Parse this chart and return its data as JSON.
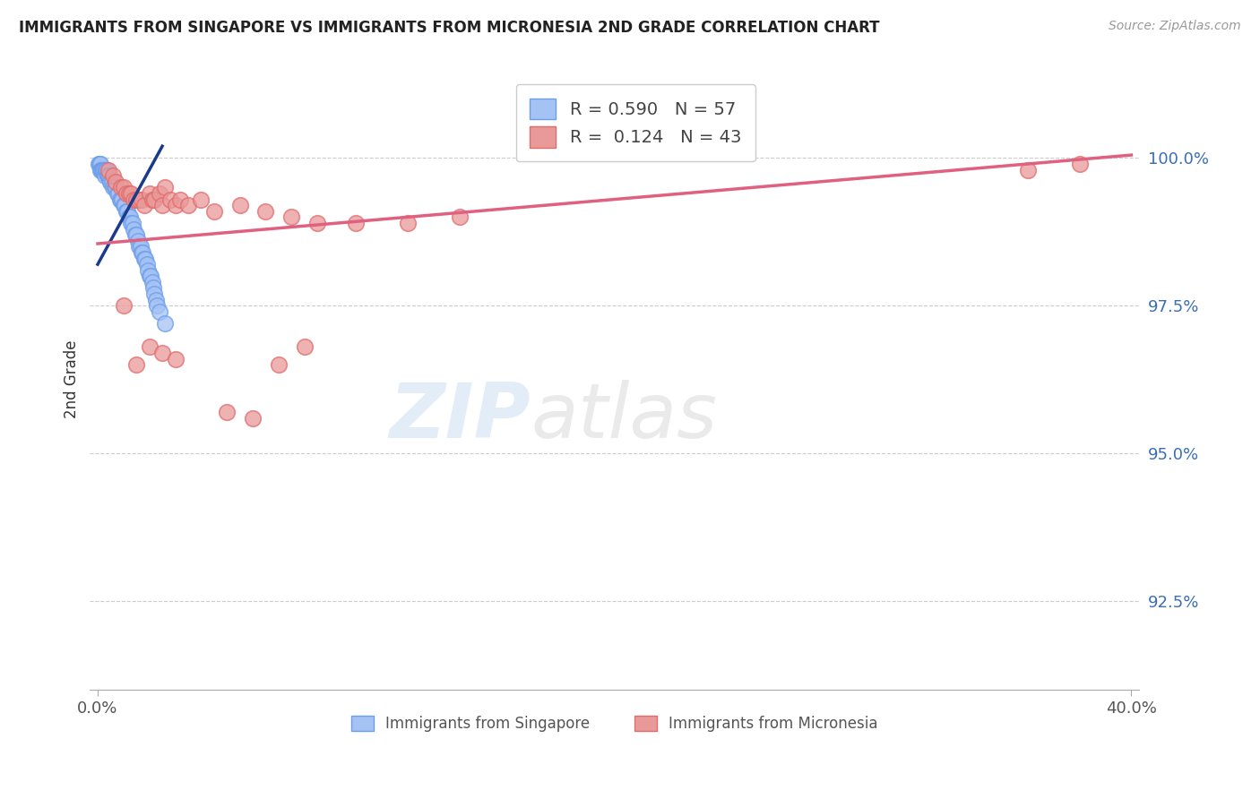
{
  "title": "IMMIGRANTS FROM SINGAPORE VS IMMIGRANTS FROM MICRONESIA 2ND GRADE CORRELATION CHART",
  "source": "Source: ZipAtlas.com",
  "ylabel": "2nd Grade",
  "xlim": [
    0.0,
    40.0
  ],
  "ylim": [
    91.0,
    101.5
  ],
  "yticks": [
    92.5,
    95.0,
    97.5,
    100.0
  ],
  "ytick_labels": [
    "92.5%",
    "95.0%",
    "97.5%",
    "100.0%"
  ],
  "singapore_color": "#a4c2f4",
  "singapore_edge": "#6d9eeb",
  "micronesia_color": "#ea9999",
  "micronesia_edge": "#e06c6c",
  "singapore_R": 0.59,
  "singapore_N": 57,
  "micronesia_R": 0.124,
  "micronesia_N": 43,
  "singapore_line_color": "#1a3a8c",
  "micronesia_line_color": "#e06080",
  "legend_label_singapore": "Immigrants from Singapore",
  "legend_label_micronesia": "Immigrants from Micronesia",
  "sg_line_x0": 0.0,
  "sg_line_y0": 98.2,
  "sg_line_x1": 2.5,
  "sg_line_y1": 100.2,
  "mc_line_x0": 0.0,
  "mc_line_y0": 98.55,
  "mc_line_x1": 40.0,
  "mc_line_y1": 100.05,
  "singapore_x": [
    0.05,
    0.08,
    0.1,
    0.12,
    0.15,
    0.18,
    0.2,
    0.22,
    0.25,
    0.28,
    0.3,
    0.32,
    0.35,
    0.38,
    0.4,
    0.42,
    0.45,
    0.48,
    0.5,
    0.55,
    0.6,
    0.65,
    0.7,
    0.75,
    0.8,
    0.85,
    0.9,
    0.95,
    1.0,
    1.05,
    1.1,
    1.15,
    1.2,
    1.25,
    1.3,
    1.35,
    1.4,
    1.45,
    1.5,
    1.55,
    1.6,
    1.65,
    1.7,
    1.75,
    1.8,
    1.85,
    1.9,
    1.95,
    2.0,
    2.05,
    2.1,
    2.15,
    2.2,
    2.25,
    2.3,
    2.4,
    2.6
  ],
  "singapore_y": [
    99.9,
    99.9,
    99.9,
    99.8,
    99.8,
    99.8,
    99.8,
    99.8,
    99.8,
    99.7,
    99.8,
    99.8,
    99.8,
    99.7,
    99.7,
    99.7,
    99.7,
    99.6,
    99.6,
    99.6,
    99.5,
    99.5,
    99.5,
    99.4,
    99.4,
    99.3,
    99.3,
    99.3,
    99.2,
    99.2,
    99.1,
    99.1,
    99.0,
    99.0,
    98.9,
    98.9,
    98.8,
    98.7,
    98.7,
    98.6,
    98.5,
    98.5,
    98.4,
    98.4,
    98.3,
    98.3,
    98.2,
    98.1,
    98.0,
    98.0,
    97.9,
    97.8,
    97.7,
    97.6,
    97.5,
    97.4,
    97.2
  ],
  "micronesia_x": [
    0.4,
    0.6,
    0.7,
    0.9,
    1.0,
    1.1,
    1.2,
    1.3,
    1.4,
    1.5,
    1.6,
    1.7,
    1.8,
    2.0,
    2.1,
    2.2,
    2.4,
    2.5,
    2.6,
    2.8,
    3.0,
    3.2,
    3.5,
    4.0,
    4.5,
    5.5,
    6.5,
    7.5,
    8.5,
    10.0,
    12.0,
    14.0,
    1.0,
    1.5,
    2.0,
    2.5,
    3.0,
    5.0,
    6.0,
    7.0,
    8.0,
    36.0,
    38.0
  ],
  "micronesia_y": [
    99.8,
    99.7,
    99.6,
    99.5,
    99.5,
    99.4,
    99.4,
    99.4,
    99.3,
    99.3,
    99.3,
    99.3,
    99.2,
    99.4,
    99.3,
    99.3,
    99.4,
    99.2,
    99.5,
    99.3,
    99.2,
    99.3,
    99.2,
    99.3,
    99.1,
    99.2,
    99.1,
    99.0,
    98.9,
    98.9,
    98.9,
    99.0,
    97.5,
    96.5,
    96.8,
    96.7,
    96.6,
    95.7,
    95.6,
    96.5,
    96.8,
    99.8,
    99.9
  ]
}
